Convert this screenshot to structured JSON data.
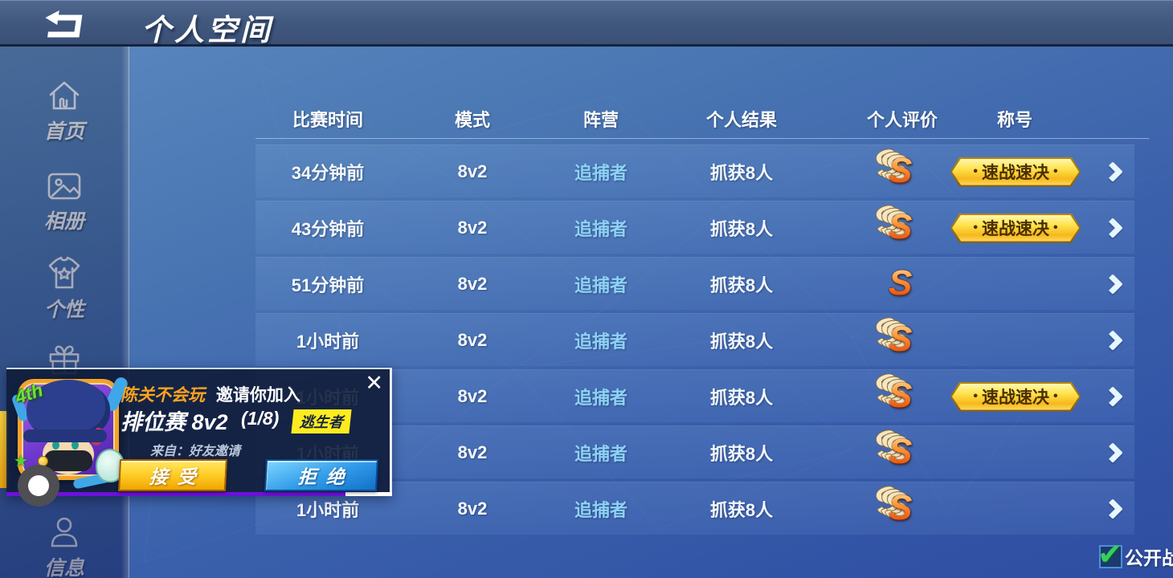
{
  "topbar": {
    "title": "个人空间"
  },
  "sidebar": {
    "items": [
      {
        "icon": "home-icon",
        "label": "首页"
      },
      {
        "icon": "album-icon",
        "label": "相册"
      },
      {
        "icon": "personality-icon",
        "label": "个性"
      },
      {
        "icon": "gift-icon",
        "label": ""
      },
      {
        "icon": "message-icon",
        "label": "信息"
      }
    ]
  },
  "table": {
    "columns": [
      "比赛时间",
      "模式",
      "阵营",
      "个人结果",
      "个人评价",
      "称号"
    ],
    "badge_dot": "•",
    "rows": [
      {
        "time": "34分钟前",
        "mode": "8v2",
        "camp": "追捕者",
        "result": "抓获8人",
        "rating": "S",
        "rating_style": "stacked",
        "title_badge": "速战速决"
      },
      {
        "time": "43分钟前",
        "mode": "8v2",
        "camp": "追捕者",
        "result": "抓获8人",
        "rating": "S",
        "rating_style": "stacked",
        "title_badge": "速战速决"
      },
      {
        "time": "51分钟前",
        "mode": "8v2",
        "camp": "追捕者",
        "result": "抓获8人",
        "rating": "S",
        "rating_style": "plain",
        "title_badge": ""
      },
      {
        "time": "1小时前",
        "mode": "8v2",
        "camp": "追捕者",
        "result": "抓获8人",
        "rating": "S",
        "rating_style": "stacked",
        "title_badge": ""
      },
      {
        "time": "1小时前",
        "mode": "8v2",
        "camp": "追捕者",
        "result": "抓获8人",
        "rating": "S",
        "rating_style": "stacked",
        "title_badge": "速战速决"
      },
      {
        "time": "1小时前",
        "mode": "8v2",
        "camp": "追捕者",
        "result": "抓获8人",
        "rating": "S",
        "rating_style": "stacked",
        "title_badge": ""
      },
      {
        "time": "1小时前",
        "mode": "8v2",
        "camp": "追捕者",
        "result": "抓获8人",
        "rating": "S",
        "rating_style": "stacked",
        "title_badge": ""
      }
    ]
  },
  "invite_popup": {
    "inviter": "陈关不会玩",
    "invite_text": "邀请你加入",
    "match_type": "排位赛 8v2",
    "slots": "(1/8)",
    "role_badge": "逃生者",
    "source": "来自：好友邀请",
    "accept_label": "接受",
    "reject_label": "拒绝",
    "close_glyph": "✕",
    "avatar_rank": "4th",
    "avatar_star": "★"
  },
  "footer": {
    "public_label": "公开战绩",
    "checked": true,
    "check_glyph": "✔"
  },
  "colors": {
    "camp_blue": "#8ed2f6",
    "badge_gold": "#ffd735",
    "badge_text": "#4a2f00",
    "rating_orange": "#ff7426",
    "popup_purple": "#6c12d8",
    "accept_gold": "#f0a500",
    "reject_blue": "#1f8de0",
    "check_green": "#35d05a",
    "inviter_orange": "#ffa41e",
    "role_badge_yellow": "#ffec1f"
  }
}
